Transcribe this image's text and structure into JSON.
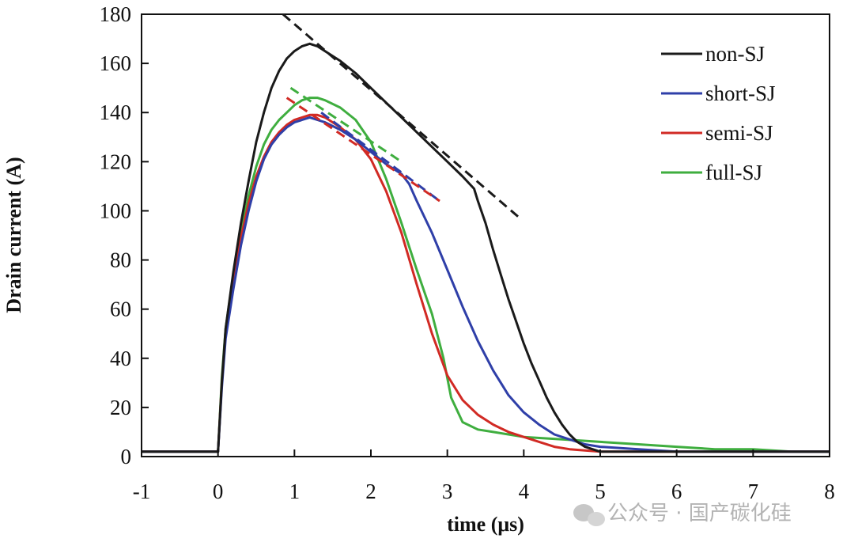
{
  "chart_data": {
    "type": "line",
    "title": "",
    "xlabel": "time (μs)",
    "ylabel": "Drain current (A)",
    "xlim": [
      -1,
      8
    ],
    "ylim": [
      0,
      180
    ],
    "x_ticks": [
      -1,
      0,
      1,
      2,
      3,
      4,
      5,
      6,
      7,
      8
    ],
    "y_ticks": [
      0,
      20,
      40,
      60,
      80,
      100,
      120,
      140,
      160,
      180
    ],
    "grid": false,
    "legend_position": "top-right",
    "series": [
      {
        "name": "non-SJ",
        "color": "#1a1a1a",
        "x": [
          -1,
          -0.02,
          0,
          0.05,
          0.1,
          0.2,
          0.3,
          0.4,
          0.5,
          0.6,
          0.7,
          0.8,
          0.9,
          1.0,
          1.1,
          1.2,
          1.3,
          1.4,
          1.6,
          1.8,
          2.0,
          2.2,
          2.4,
          2.6,
          2.8,
          3.0,
          3.2,
          3.35,
          3.4,
          3.5,
          3.6,
          3.7,
          3.8,
          3.9,
          4.0,
          4.1,
          4.2,
          4.3,
          4.4,
          4.5,
          4.6,
          4.7,
          4.8,
          4.9,
          5.0,
          5.5,
          6.0,
          6.5,
          7.0,
          7.5,
          8.0
        ],
        "y": [
          2,
          2,
          2,
          30,
          52,
          75,
          95,
          112,
          128,
          140,
          150,
          157,
          162,
          165,
          167,
          168,
          167,
          165,
          161,
          156,
          150,
          144,
          138,
          132,
          126,
          120,
          114,
          109,
          104,
          95,
          84,
          74,
          64,
          55,
          46,
          38,
          31,
          24,
          18,
          13,
          9,
          6,
          4,
          3,
          2,
          2,
          2,
          2,
          2,
          2,
          2
        ]
      },
      {
        "name": "short-SJ",
        "color": "#2f3fa8",
        "x": [
          -1,
          -0.02,
          0,
          0.05,
          0.1,
          0.2,
          0.3,
          0.4,
          0.5,
          0.6,
          0.7,
          0.8,
          0.9,
          1.0,
          1.1,
          1.2,
          1.3,
          1.4,
          1.6,
          1.8,
          2.0,
          2.2,
          2.4,
          2.5,
          2.6,
          2.8,
          3.0,
          3.2,
          3.4,
          3.6,
          3.8,
          4.0,
          4.2,
          4.4,
          4.6,
          4.8,
          5.0,
          5.5,
          6.0,
          6.5,
          7.0,
          7.5,
          8.0
        ],
        "y": [
          2,
          2,
          2,
          28,
          48,
          68,
          86,
          100,
          112,
          121,
          127,
          131,
          134,
          136,
          137,
          138,
          137,
          136,
          133,
          129,
          124,
          119,
          115,
          111,
          104,
          91,
          76,
          61,
          47,
          35,
          25,
          18,
          13,
          9,
          7,
          5,
          4,
          3,
          2,
          2,
          2,
          2,
          2
        ]
      },
      {
        "name": "semi-SJ",
        "color": "#d12a24",
        "x": [
          -1,
          -0.02,
          0,
          0.05,
          0.1,
          0.2,
          0.3,
          0.4,
          0.5,
          0.6,
          0.7,
          0.8,
          0.9,
          1.0,
          1.1,
          1.2,
          1.3,
          1.4,
          1.6,
          1.8,
          2.0,
          2.2,
          2.4,
          2.6,
          2.8,
          3.0,
          3.2,
          3.4,
          3.6,
          3.8,
          4.0,
          4.2,
          4.4,
          4.6,
          5.0,
          5.5,
          6.0,
          6.5,
          7.0,
          7.5,
          8.0
        ],
        "y": [
          2,
          2,
          2,
          30,
          50,
          72,
          89,
          103,
          114,
          122,
          128,
          132,
          135,
          137,
          138,
          139,
          139,
          138,
          134,
          129,
          121,
          108,
          91,
          70,
          50,
          33,
          23,
          17,
          13,
          10,
          8,
          6,
          4,
          3,
          2,
          2,
          2,
          2,
          2,
          2,
          2
        ]
      },
      {
        "name": "full-SJ",
        "color": "#3fae3f",
        "x": [
          -1,
          -0.02,
          0,
          0.05,
          0.1,
          0.2,
          0.3,
          0.4,
          0.5,
          0.6,
          0.7,
          0.8,
          0.9,
          1.0,
          1.1,
          1.2,
          1.3,
          1.4,
          1.6,
          1.8,
          2.0,
          2.2,
          2.4,
          2.6,
          2.8,
          2.95,
          3.05,
          3.2,
          3.4,
          3.6,
          3.8,
          4.0,
          4.5,
          5.0,
          5.5,
          6.0,
          6.5,
          7.0,
          7.5,
          8.0
        ],
        "y": [
          2,
          2,
          2,
          32,
          52,
          74,
          92,
          106,
          118,
          127,
          133,
          137,
          140,
          143,
          145,
          146,
          146,
          145,
          142,
          137,
          128,
          113,
          95,
          76,
          58,
          40,
          24,
          14,
          11,
          10,
          9,
          8,
          7,
          6,
          5,
          4,
          3,
          3,
          2,
          2
        ]
      }
    ],
    "reference_lines": [
      {
        "color": "#1a1a1a",
        "x": [
          0.85,
          3.95
        ],
        "y": [
          180,
          97
        ]
      },
      {
        "color": "#2f3fa8",
        "x": [
          1.35,
          2.9
        ],
        "y": [
          140,
          104
        ]
      },
      {
        "color": "#d12a24",
        "x": [
          0.9,
          2.9
        ],
        "y": [
          146,
          104
        ]
      },
      {
        "color": "#3fae3f",
        "x": [
          0.95,
          2.4
        ],
        "y": [
          150,
          120
        ]
      }
    ]
  },
  "watermark": "公众号 · 国产碳化硅"
}
